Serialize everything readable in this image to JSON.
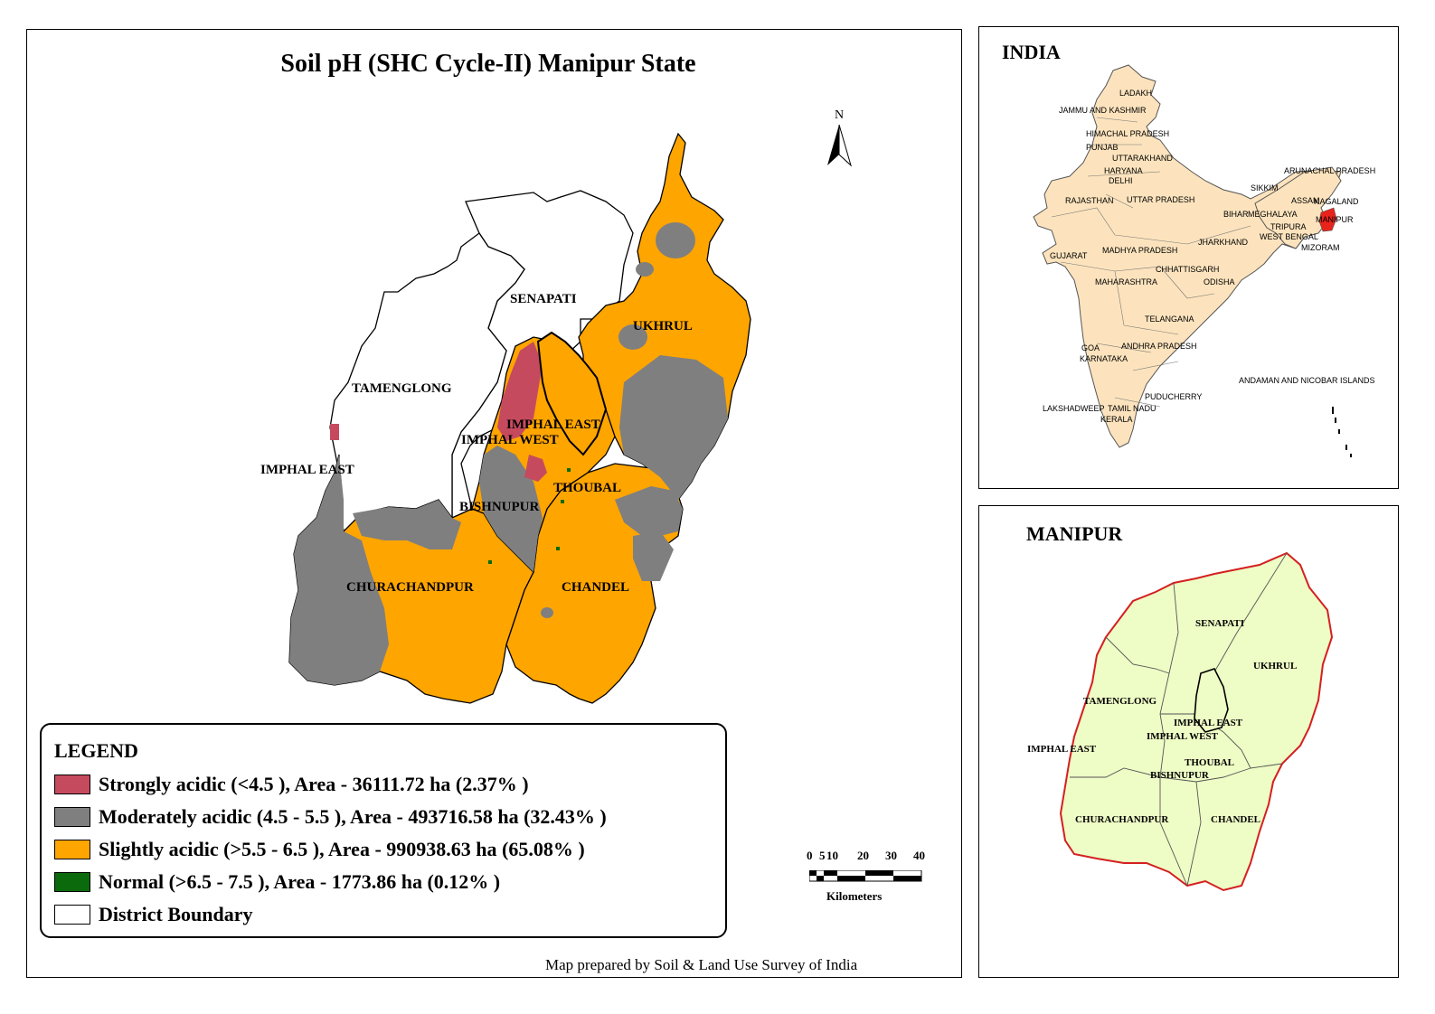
{
  "map": {
    "title": "Soil pH (SHC Cycle-II) Manipur State",
    "north_label": "N",
    "district_labels": {
      "senapati": "SENAPATI",
      "ukhrul": "UKHRUL",
      "tamenglong": "TAMENGLONG",
      "imphal_east_main": "IMPHAL EAST",
      "imphal_west": "IMPHAL WEST",
      "imphal_east_west": "IMPHAL EAST",
      "bishnupur": "BISHNUPUR",
      "thoubal": "THOUBAL",
      "churachandpur": "CHURACHANDPUR",
      "chandel": "CHANDEL"
    }
  },
  "legend": {
    "title": "LEGEND",
    "items": [
      {
        "label": "Strongly acidic  (<4.5 ), Area - 36111.72  ha (2.37% )",
        "color": "#c64a5e"
      },
      {
        "label": "Moderately acidic  (4.5 - 5.5 ), Area - 493716.58  ha (32.43% )",
        "color": "#7f7f7f"
      },
      {
        "label": "Slightly acidic  (>5.5 - 6.5 ), Area - 990938.63  ha (65.08% )",
        "color": "#ffa500"
      },
      {
        "label": "Normal  (>6.5 - 7.5 ), Area - 1773.86  ha (0.12% )",
        "color": "#0b6a0b"
      },
      {
        "label": "District Boundary",
        "color": "#ffffff"
      }
    ]
  },
  "scale_bar": {
    "ticks": [
      "0",
      "5",
      "10",
      "20",
      "30",
      "40"
    ],
    "unit": "Kilometers"
  },
  "credit": "Map prepared by Soil & Land Use Survey of India",
  "india_inset": {
    "title": "INDIA",
    "fill_color": "#fce3bd",
    "highlight_color": "#e8231c",
    "labels": {
      "ladakh": "LADAKH",
      "jk": "JAMMU AND KASHMIR",
      "hp": "HIMACHAL PRADESH",
      "punjab": "PUNJAB",
      "uttarakhand": "UTTARAKHAND",
      "haryana": "HARYANA",
      "delhi": "DELHI",
      "arunachal": "ARUNACHAL PRADESH",
      "sikkim": "SIKKIM",
      "assam": "ASSAM",
      "nagaland": "NAGALAND",
      "rajasthan": "RAJASTHAN",
      "up": "UTTAR PRADESH",
      "bihar": "BIHAR",
      "meghalaya": "MEGHALAYA",
      "manipur": "MANIPUR",
      "tripura": "TRIPURA",
      "wb": "WEST BENGAL",
      "mizoram": "MIZORAM",
      "jharkhand": "JHARKHAND",
      "gujarat": "GUJARAT",
      "mp": "MADHYA PRADESH",
      "chhattisgarh": "CHHATTISGARH",
      "maharashtra": "MAHARASHTRA",
      "odisha": "ODISHA",
      "telangana": "TELANGANA",
      "goa": "GOA",
      "ap": "ANDHRA PRADESH",
      "karnataka": "KARNATAKA",
      "andaman": "ANDAMAN AND NICOBAR ISLANDS",
      "puducherry": "PUDUCHERRY",
      "lakshadweep": "LAKSHADWEEP",
      "tn": "TAMIL NADU",
      "kerala": "KERALA"
    }
  },
  "manipur_inset": {
    "title": "MANIPUR",
    "fill_color": "#eefcc5",
    "boundary_color": "#d42020",
    "labels": {
      "senapati": "SENAPATI",
      "ukhrul": "UKHRUL",
      "tamenglong": "TAMENGLONG",
      "imphal_east_main": "IMPHAL EAST",
      "imphal_west": "IMPHAL WEST",
      "imphal_east_west": "IMPHAL EAST",
      "thoubal": "THOUBAL",
      "bishnupur": "BISHNUPUR",
      "churachandpur": "CHURACHANDPUR",
      "chandel": "CHANDEL"
    }
  }
}
